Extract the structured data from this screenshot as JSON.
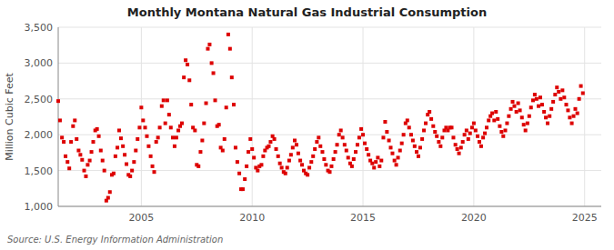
{
  "chart_data": {
    "type": "scatter",
    "title": "Monthly Montana Natural Gas Industrial Consumption",
    "ylabel": "Million Cubic Feet",
    "annotations": [
      "Source: U.S. Energy Information Administration"
    ],
    "color": "#dd0000",
    "marker": "square",
    "grid": true,
    "xlim": [
      2001.25,
      2025.75
    ],
    "xticks": [
      2005,
      2010,
      2015,
      2020,
      2025
    ],
    "ylim": [
      1000,
      3500
    ],
    "yticks": [
      {
        "value": 1000,
        "label": "1,000"
      },
      {
        "value": 1500,
        "label": "1,500"
      },
      {
        "value": 2000,
        "label": "2,000"
      },
      {
        "value": 2500,
        "label": "2,500"
      },
      {
        "value": 3000,
        "label": "3,000"
      },
      {
        "value": 3500,
        "label": "3,500"
      }
    ],
    "x": [
      2001.25,
      2001.33,
      2001.42,
      2001.5,
      2001.58,
      2001.67,
      2001.75,
      2001.83,
      2001.92,
      2002.0,
      2002.08,
      2002.17,
      2002.25,
      2002.33,
      2002.42,
      2002.5,
      2002.58,
      2002.67,
      2002.75,
      2002.83,
      2002.92,
      2003.0,
      2003.08,
      2003.17,
      2003.25,
      2003.33,
      2003.42,
      2003.5,
      2003.58,
      2003.67,
      2003.75,
      2003.83,
      2003.92,
      2004.0,
      2004.08,
      2004.17,
      2004.25,
      2004.33,
      2004.42,
      2004.5,
      2004.58,
      2004.67,
      2004.75,
      2004.83,
      2004.92,
      2005.0,
      2005.08,
      2005.17,
      2005.25,
      2005.33,
      2005.42,
      2005.5,
      2005.58,
      2005.67,
      2005.75,
      2005.83,
      2005.92,
      2006.0,
      2006.08,
      2006.17,
      2006.25,
      2006.33,
      2006.42,
      2006.5,
      2006.58,
      2006.67,
      2006.75,
      2006.83,
      2006.92,
      2007.0,
      2007.08,
      2007.17,
      2007.25,
      2007.33,
      2007.42,
      2007.5,
      2007.58,
      2007.67,
      2007.75,
      2007.83,
      2007.92,
      2008.0,
      2008.08,
      2008.17,
      2008.25,
      2008.33,
      2008.42,
      2008.5,
      2008.58,
      2008.67,
      2008.75,
      2008.83,
      2008.92,
      2009.0,
      2009.08,
      2009.17,
      2009.25,
      2009.33,
      2009.42,
      2009.5,
      2009.58,
      2009.67,
      2009.75,
      2009.83,
      2009.92,
      2010.0,
      2010.08,
      2010.17,
      2010.25,
      2010.33,
      2010.42,
      2010.5,
      2010.58,
      2010.67,
      2010.75,
      2010.83,
      2010.92,
      2011.0,
      2011.08,
      2011.17,
      2011.25,
      2011.33,
      2011.42,
      2011.5,
      2011.58,
      2011.67,
      2011.75,
      2011.83,
      2011.92,
      2012.0,
      2012.08,
      2012.17,
      2012.25,
      2012.33,
      2012.42,
      2012.5,
      2012.58,
      2012.67,
      2012.75,
      2012.83,
      2012.92,
      2013.0,
      2013.08,
      2013.17,
      2013.25,
      2013.33,
      2013.42,
      2013.5,
      2013.58,
      2013.67,
      2013.75,
      2013.83,
      2013.92,
      2014.0,
      2014.08,
      2014.17,
      2014.25,
      2014.33,
      2014.42,
      2014.5,
      2014.58,
      2014.67,
      2014.75,
      2014.83,
      2014.92,
      2015.0,
      2015.08,
      2015.17,
      2015.25,
      2015.33,
      2015.42,
      2015.5,
      2015.58,
      2015.67,
      2015.75,
      2015.83,
      2015.92,
      2016.0,
      2016.08,
      2016.17,
      2016.25,
      2016.33,
      2016.42,
      2016.5,
      2016.58,
      2016.67,
      2016.75,
      2016.83,
      2016.92,
      2017.0,
      2017.08,
      2017.17,
      2017.25,
      2017.33,
      2017.42,
      2017.5,
      2017.58,
      2017.67,
      2017.75,
      2017.83,
      2017.92,
      2018.0,
      2018.08,
      2018.17,
      2018.25,
      2018.33,
      2018.42,
      2018.5,
      2018.58,
      2018.67,
      2018.75,
      2018.83,
      2018.92,
      2019.0,
      2019.08,
      2019.17,
      2019.25,
      2019.33,
      2019.42,
      2019.5,
      2019.58,
      2019.67,
      2019.75,
      2019.83,
      2019.92,
      2020.0,
      2020.08,
      2020.17,
      2020.25,
      2020.33,
      2020.42,
      2020.5,
      2020.58,
      2020.67,
      2020.75,
      2020.83,
      2020.92,
      2021.0,
      2021.08,
      2021.17,
      2021.25,
      2021.33,
      2021.42,
      2021.5,
      2021.58,
      2021.67,
      2021.75,
      2021.83,
      2021.92,
      2022.0,
      2022.08,
      2022.17,
      2022.25,
      2022.33,
      2022.42,
      2022.5,
      2022.58,
      2022.67,
      2022.75,
      2022.83,
      2022.92,
      2023.0,
      2023.08,
      2023.17,
      2023.25,
      2023.33,
      2023.42,
      2023.5,
      2023.58,
      2023.67,
      2023.75,
      2023.83,
      2023.92,
      2024.0,
      2024.08,
      2024.17,
      2024.25,
      2024.33,
      2024.42,
      2024.5,
      2024.58,
      2024.67,
      2024.75,
      2024.83,
      2024.92
    ],
    "values": [
      2470,
      2200,
      1960,
      1900,
      1700,
      1620,
      1530,
      1900,
      2120,
      2200,
      1940,
      1780,
      1720,
      1650,
      1500,
      1420,
      1580,
      1640,
      1760,
      1900,
      2060,
      2080,
      1980,
      1780,
      1640,
      1500,
      1080,
      1120,
      1200,
      1440,
      1460,
      1700,
      1820,
      2060,
      1950,
      1840,
      1720,
      1590,
      1440,
      1420,
      1500,
      1620,
      1780,
      1940,
      2100,
      2380,
      2200,
      2100,
      1980,
      1840,
      1700,
      1560,
      1480,
      1900,
      1960,
      2100,
      2400,
      2480,
      2160,
      2480,
      2280,
      2100,
      1960,
      1840,
      1960,
      2060,
      2120,
      2160,
      2800,
      3040,
      2980,
      2760,
      2420,
      2100,
      2060,
      1580,
      1560,
      1760,
      1920,
      2160,
      2440,
      3200,
      3260,
      3000,
      2860,
      2480,
      2120,
      2140,
      1820,
      1780,
      1940,
      2380,
      3400,
      3200,
      2800,
      2420,
      1820,
      1620,
      1460,
      1240,
      1240,
      1380,
      1560,
      1760,
      1940,
      1800,
      1680,
      1540,
      1500,
      1560,
      1580,
      1700,
      1780,
      1820,
      1840,
      1900,
      1980,
      1940,
      1800,
      1700,
      1600,
      1540,
      1480,
      1460,
      1540,
      1640,
      1720,
      1820,
      1920,
      1860,
      1740,
      1640,
      1580,
      1500,
      1460,
      1440,
      1540,
      1620,
      1700,
      1800,
      1900,
      1960,
      1840,
      1760,
      1660,
      1580,
      1500,
      1480,
      1560,
      1660,
      1760,
      1860,
      2000,
      2060,
      1960,
      1860,
      1780,
      1680,
      1600,
      1560,
      1660,
      1760,
      1860,
      1960,
      2080,
      2000,
      1880,
      1800,
      1720,
      1640,
      1600,
      1540,
      1620,
      1680,
      1560,
      1640,
      1960,
      2180,
      2040,
      1920,
      1820,
      1740,
      1640,
      1580,
      1680,
      1780,
      1880,
      2000,
      2160,
      2200,
      2100,
      2000,
      1920,
      1840,
      1760,
      1700,
      1820,
      1940,
      2060,
      2160,
      2280,
      2320,
      2220,
      2120,
      2040,
      1980,
      1900,
      1840,
      1960,
      2060,
      2100,
      2060,
      2100,
      2100,
      1960,
      1860,
      1800,
      1740,
      1820,
      1900,
      2000,
      2060,
      1940,
      2020,
      2100,
      2160,
      2060,
      1980,
      1900,
      1840,
      1960,
      2020,
      2100,
      2200,
      2260,
      2300,
      2200,
      2320,
      2220,
      2120,
      2040,
      1980,
      2060,
      2160,
      2260,
      2360,
      2460,
      2400,
      2320,
      2440,
      2340,
      2240,
      2140,
      2060,
      2160,
      2260,
      2380,
      2480,
      2560,
      2500,
      2400,
      2520,
      2420,
      2320,
      2240,
      2160,
      2260,
      2360,
      2460,
      2560,
      2660,
      2600,
      2500,
      2620,
      2520,
      2420,
      2340,
      2240,
      2160,
      2260,
      2360,
      2300,
      2500,
      2680,
      2580
    ]
  }
}
